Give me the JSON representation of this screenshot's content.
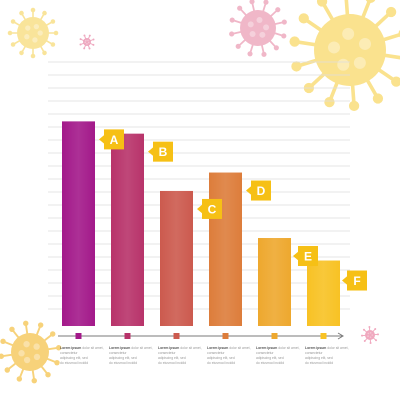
{
  "chart_data": {
    "type": "bar",
    "title": "",
    "xlabel": "",
    "ylabel": "",
    "categories": [
      "A",
      "B",
      "C",
      "D",
      "E",
      "F"
    ],
    "values": [
      100,
      94,
      66,
      75,
      43,
      32
    ],
    "ylim": [
      0,
      130
    ],
    "grid": true,
    "legend": "none",
    "bar_colors": [
      "#a3198a",
      "#b8336a",
      "#cc5a4e",
      "#dd7d3b",
      "#eea82e",
      "#f8c224"
    ],
    "tag_color": "#f6c015",
    "axis_color": "#7a7a7a",
    "captions": [
      {
        "bold": "Lorem ipsum",
        "text": "dolor sit amet, consectetur adipiscing elit, sed do eiusmod incidid"
      },
      {
        "bold": "Lorem ipsum",
        "text": "dolor sit amet, consectetur adipiscing elit, sed do eiusmod incidid"
      },
      {
        "bold": "Lorem ipsum",
        "text": "dolor sit amet, consectetur adipiscing elit, sed do eiusmod incidid"
      },
      {
        "bold": "Lorem ipsum",
        "text": "dolor sit amet, consectetur adipiscing elit, sed do eiusmod incidid"
      },
      {
        "bold": "Lorem ipsum",
        "text": "dolor sit amet, consectetur adipiscing elit, sed do eiusmod incidid"
      },
      {
        "bold": "Lorem ipsum",
        "text": "dolor sit amet, consectetur adipiscing elit, sed do eiusmod incidid"
      }
    ],
    "decorations": [
      {
        "icon": "virus-icon",
        "color": "#f9e49a"
      },
      {
        "icon": "virus-icon",
        "color": "#f0b7c8"
      },
      {
        "icon": "virus-icon",
        "color": "#fae28e"
      },
      {
        "icon": "virus-icon",
        "color": "#f7d27a"
      },
      {
        "icon": "virus-icon",
        "color": "#eea9c0"
      },
      {
        "icon": "virus-icon",
        "color": "#f0a9bf"
      }
    ]
  }
}
